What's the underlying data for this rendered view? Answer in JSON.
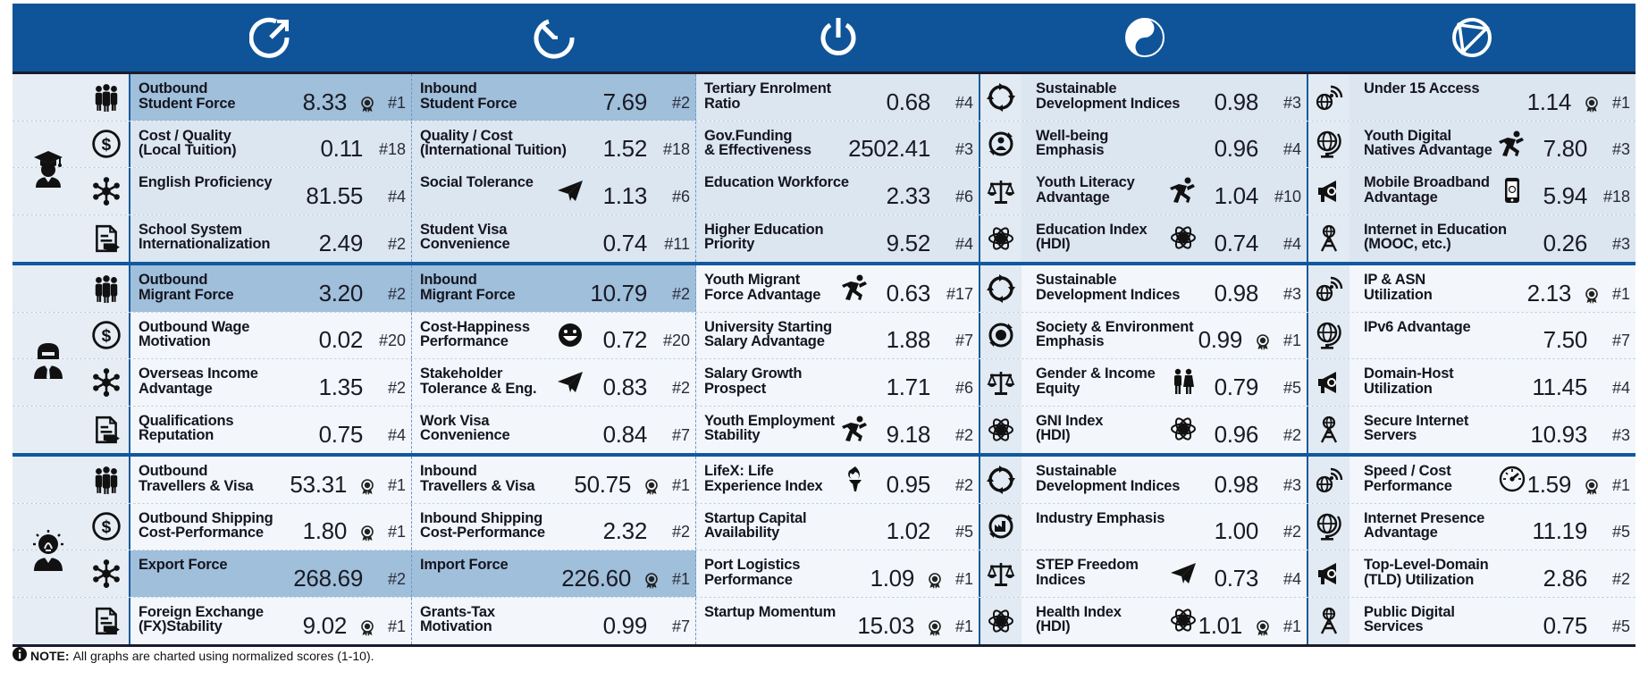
{
  "header_icons": [
    "dial-outbound-icon",
    "dial-inbound-icon",
    "power-icon",
    "yin-yang-icon",
    "globe-network-icon"
  ],
  "colors": {
    "header": "#0f5499",
    "bright": "#dbe6f1",
    "pale": "#f3f6fa",
    "shaded": "#9fbfdb",
    "inner": "#e2eaf3"
  },
  "groups": [
    {
      "icon": "student-icon",
      "rows": [
        {
          "icon": "people-icon",
          "cells": [
            {
              "label": [
                "Outbound",
                "Student Force"
              ],
              "value": "8.33",
              "rank": "#1",
              "medal": true,
              "hl": true
            },
            {
              "label": [
                "Inbound",
                "Student Force"
              ],
              "value": "7.69",
              "rank": "#2",
              "hl": true
            },
            {
              "label": [
                "Tertiary Enrolment",
                "Ratio"
              ],
              "value": "0.68",
              "rank": "#4"
            },
            {
              "label": [
                "Sustainable",
                "Development Indices"
              ],
              "value": "0.98",
              "rank": "#3",
              "left": "cycle-icon"
            },
            {
              "label": [
                "Under 15 Access",
                ""
              ],
              "value": "1.14",
              "rank": "#1",
              "medal": true,
              "left": "wifi-globe-icon"
            }
          ]
        },
        {
          "icon": "dollar-icon",
          "cells": [
            {
              "label": [
                "Cost / Quality",
                "(Local Tuition)"
              ],
              "value": "0.11",
              "rank": "#18"
            },
            {
              "label": [
                "Quality / Cost",
                "(International Tuition)"
              ],
              "value": "1.52",
              "rank": "#18"
            },
            {
              "label": [
                "Gov.Funding",
                "& Effectiveness"
              ],
              "value": "2502.41",
              "rank": "#3"
            },
            {
              "label": [
                "Well-being",
                "Emphasis"
              ],
              "value": "0.96",
              "rank": "#4",
              "left": "recycle-person-icon"
            },
            {
              "label": [
                "Youth Digital",
                "Natives Advantage"
              ],
              "value": "7.80",
              "rank": "#3",
              "left": "globe-stand-icon",
              "right": "runner-icon"
            }
          ]
        },
        {
          "icon": "network-icon",
          "cells": [
            {
              "label": [
                "English Proficiency",
                ""
              ],
              "value": "81.55",
              "rank": "#4"
            },
            {
              "label": [
                "Social Tolerance",
                ""
              ],
              "value": "1.13",
              "rank": "#6",
              "right": "paper-plane-icon"
            },
            {
              "label": [
                "Education Workforce",
                ""
              ],
              "value": "2.33",
              "rank": "#6"
            },
            {
              "label": [
                "Youth Literacy",
                "Advantage"
              ],
              "value": "1.04",
              "rank": "#10",
              "left": "scales-icon",
              "right": "runner-icon"
            },
            {
              "label": [
                "Mobile Broadband",
                "Advantage"
              ],
              "value": "5.94",
              "rank": "#18",
              "left": "megaphone-icon",
              "right": "phone-icon"
            }
          ]
        },
        {
          "icon": "document-icon",
          "cells": [
            {
              "label": [
                "School System",
                "Internationalization"
              ],
              "value": "2.49",
              "rank": "#2"
            },
            {
              "label": [
                "Student Visa",
                "Convenience"
              ],
              "value": "0.74",
              "rank": "#11"
            },
            {
              "label": [
                "Higher Education",
                "Priority"
              ],
              "value": "9.52",
              "rank": "#4"
            },
            {
              "label": [
                "Education Index",
                "(HDI)"
              ],
              "value": "0.74",
              "rank": "#4",
              "left": "atom-icon",
              "right": "atom-icon"
            },
            {
              "label": [
                "Internet in Education",
                "(MOOC, etc.)"
              ],
              "value": "0.26",
              "rank": "#3",
              "left": "tower-icon"
            }
          ]
        }
      ]
    },
    {
      "icon": "worker-icon",
      "rows": [
        {
          "icon": "people-icon",
          "cells": [
            {
              "label": [
                "Outbound",
                "Migrant Force"
              ],
              "value": "3.20",
              "rank": "#2",
              "hl": true
            },
            {
              "label": [
                "Inbound",
                "Migrant Force"
              ],
              "value": "10.79",
              "rank": "#2",
              "hl": true
            },
            {
              "label": [
                "Youth Migrant",
                "Force Advantage"
              ],
              "value": "0.63",
              "rank": "#17",
              "right": "runner-icon"
            },
            {
              "label": [
                "Sustainable",
                "Development Indices"
              ],
              "value": "0.98",
              "rank": "#3",
              "left": "cycle-icon"
            },
            {
              "label": [
                "IP & ASN",
                "Utilization"
              ],
              "value": "2.13",
              "rank": "#1",
              "medal": true,
              "left": "wifi-globe-icon"
            }
          ]
        },
        {
          "icon": "dollar-icon",
          "cells": [
            {
              "label": [
                "Outbound Wage",
                "Motivation"
              ],
              "value": "0.02",
              "rank": "#20"
            },
            {
              "label": [
                "Cost-Happiness",
                "Performance"
              ],
              "value": "0.72",
              "rank": "#20",
              "right": "smiley-icon"
            },
            {
              "label": [
                "University Starting",
                "Salary Advantage"
              ],
              "value": "1.88",
              "rank": "#7"
            },
            {
              "label": [
                "Society & Environment",
                "Emphasis"
              ],
              "value": "0.99",
              "rank": "#1",
              "medal": true,
              "left": "recycle-globe-icon"
            },
            {
              "label": [
                "IPv6 Advantage",
                ""
              ],
              "value": "7.50",
              "rank": "#7",
              "left": "globe-stand-icon"
            }
          ]
        },
        {
          "icon": "network-icon",
          "cells": [
            {
              "label": [
                "Overseas Income",
                "Advantage"
              ],
              "value": "1.35",
              "rank": "#2"
            },
            {
              "label": [
                "Stakeholder",
                "Tolerance & Eng."
              ],
              "value": "0.83",
              "rank": "#2",
              "right": "paper-plane-icon"
            },
            {
              "label": [
                "Salary Growth",
                "Prospect"
              ],
              "value": "1.71",
              "rank": "#6"
            },
            {
              "label": [
                "Gender & Income",
                "Equity"
              ],
              "value": "0.79",
              "rank": "#5",
              "left": "scales-icon",
              "right": "couple-icon"
            },
            {
              "label": [
                "Domain-Host",
                "Utilization"
              ],
              "value": "11.45",
              "rank": "#4",
              "left": "megaphone-icon"
            }
          ]
        },
        {
          "icon": "document-icon",
          "cells": [
            {
              "label": [
                "Qualifications",
                "Reputation"
              ],
              "value": "0.75",
              "rank": "#4"
            },
            {
              "label": [
                "Work Visa",
                "Convenience"
              ],
              "value": "0.84",
              "rank": "#7"
            },
            {
              "label": [
                "Youth Employment",
                "Stability"
              ],
              "value": "9.18",
              "rank": "#2",
              "right": "runner-icon"
            },
            {
              "label": [
                "GNI Index",
                "(HDI)"
              ],
              "value": "0.96",
              "rank": "#2",
              "left": "atom-icon",
              "right": "atom-icon"
            },
            {
              "label": [
                "Secure Internet",
                "Servers"
              ],
              "value": "10.93",
              "rank": "#3",
              "left": "tower-icon"
            }
          ]
        }
      ]
    },
    {
      "icon": "innovator-icon",
      "rows": [
        {
          "icon": "people-icon",
          "cells": [
            {
              "label": [
                "Outbound",
                "Travellers & Visa"
              ],
              "value": "53.31",
              "rank": "#1",
              "medal": true
            },
            {
              "label": [
                "Inbound",
                "Travellers & Visa"
              ],
              "value": "50.75",
              "rank": "#1",
              "medal": true
            },
            {
              "label": [
                "LifeX: Life",
                "Experience Index"
              ],
              "value": "0.95",
              "rank": "#2",
              "right": "torch-icon"
            },
            {
              "label": [
                "Sustainable",
                "Development Indices"
              ],
              "value": "0.98",
              "rank": "#3",
              "left": "cycle-icon"
            },
            {
              "label": [
                "Speed / Cost",
                "Performance"
              ],
              "value": "1.59",
              "rank": "#1",
              "medal": true,
              "left": "wifi-globe-icon",
              "right": "speedometer-icon"
            }
          ]
        },
        {
          "icon": "dollar-icon",
          "cells": [
            {
              "label": [
                "Outbound Shipping",
                "Cost-Performance"
              ],
              "value": "1.80",
              "rank": "#1",
              "medal": true
            },
            {
              "label": [
                "Inbound Shipping",
                "Cost-Performance"
              ],
              "value": "2.32",
              "rank": "#2"
            },
            {
              "label": [
                "Startup Capital",
                "Availability"
              ],
              "value": "1.02",
              "rank": "#5"
            },
            {
              "label": [
                "Industry Emphasis",
                ""
              ],
              "value": "1.00",
              "rank": "#2",
              "left": "recycle-factory-icon"
            },
            {
              "label": [
                "Internet Presence",
                "Advantage"
              ],
              "value": "11.19",
              "rank": "#5",
              "left": "globe-stand-icon"
            }
          ]
        },
        {
          "icon": "network-icon",
          "cells": [
            {
              "label": [
                "Export Force",
                ""
              ],
              "value": "268.69",
              "rank": "#2",
              "hl": true
            },
            {
              "label": [
                "Import Force",
                ""
              ],
              "value": "226.60",
              "rank": "#1",
              "medal": true,
              "hl": true
            },
            {
              "label": [
                "Port Logistics",
                "Performance"
              ],
              "value": "1.09",
              "rank": "#1",
              "medal": true
            },
            {
              "label": [
                "STEP Freedom",
                "Indices"
              ],
              "value": "0.73",
              "rank": "#4",
              "left": "scales-icon",
              "right": "paper-plane-icon"
            },
            {
              "label": [
                "Top-Level-Domain",
                "(TLD) Utilization"
              ],
              "value": "2.86",
              "rank": "#2",
              "left": "megaphone-icon"
            }
          ]
        },
        {
          "icon": "document-icon",
          "cells": [
            {
              "label": [
                "Foreign Exchange",
                "(FX)Stability"
              ],
              "value": "9.02",
              "rank": "#1",
              "medal": true
            },
            {
              "label": [
                "Grants-Tax",
                "Motivation"
              ],
              "value": "0.99",
              "rank": "#7"
            },
            {
              "label": [
                "Startup Momentum",
                ""
              ],
              "value": "15.03",
              "rank": "#1",
              "medal": true
            },
            {
              "label": [
                "Health Index",
                "(HDI)"
              ],
              "value": "1.01",
              "rank": "#1",
              "medal": true,
              "left": "atom-icon",
              "right": "atom-icon"
            },
            {
              "label": [
                "Public Digital",
                "Services"
              ],
              "value": "0.75",
              "rank": "#5",
              "left": "tower-icon"
            }
          ]
        }
      ]
    }
  ],
  "note": {
    "bold": "NOTE:",
    "text": " All graphs are charted using normalized scores (1-10).",
    "icon": "info-icon"
  }
}
